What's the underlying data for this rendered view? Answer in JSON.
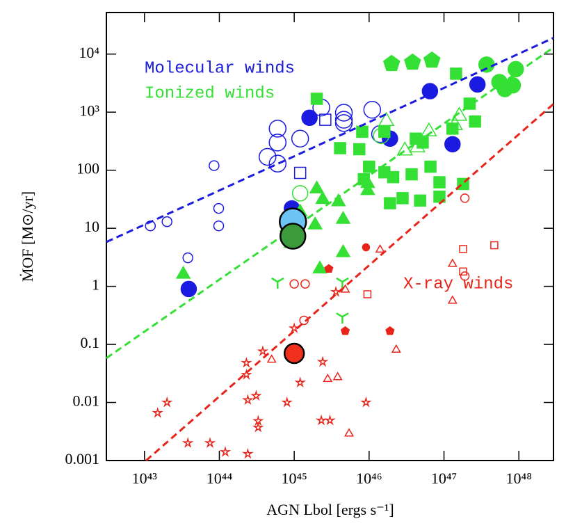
{
  "chart_data": {
    "type": "scatter",
    "xlabel": "AGN Lbol [ergs s⁻¹]",
    "ylabel": "ṀOF  [M⊙/yr]",
    "log_x": true,
    "log_y": true,
    "xlim": [
      3.1e+42,
      2.9e+48
    ],
    "ylim": [
      0.001,
      52000
    ],
    "xticks": [
      {
        "value": 1e+43,
        "label": "10⁴³"
      },
      {
        "value": 1e+44,
        "label": "10⁴⁴"
      },
      {
        "value": 1e+45,
        "label": "10⁴⁵"
      },
      {
        "value": 1e+46,
        "label": "10⁴⁶"
      },
      {
        "value": 1e+47,
        "label": "10⁴⁷"
      },
      {
        "value": 1e+48,
        "label": "10⁴⁸"
      }
    ],
    "yticks": [
      0.001,
      0.01,
      0.1,
      1,
      10,
      100,
      {
        "value": 1000,
        "label": "10³"
      },
      {
        "value": 10000,
        "label": "10⁴"
      }
    ],
    "series": [
      {
        "name": "Molecular winds",
        "color": "#1a1ae0",
        "marker": "circle",
        "filled": true,
        "size": 11,
        "x": [
          3.9e+43,
          1.6e+45,
          1.9e+46,
          6.5e+46,
          2.8e+47,
          1.3e+47,
          9.3e+44
        ],
        "values": [
          0.9,
          800,
          350,
          2300,
          3000,
          280,
          22
        ]
      },
      {
        "color": "#1a1ae0",
        "marker": "circle",
        "filled": false,
        "size": 7,
        "x": [
          1.2e+43,
          2e+43,
          8.5e+43,
          9.8e+43,
          9.8e+43,
          3.8e+43
        ],
        "values": [
          11,
          13,
          120,
          22,
          11,
          3.1
        ]
      },
      {
        "color": "#1a1ae0",
        "marker": "circle",
        "filled": false,
        "size": 12,
        "x": [
          4.4e+44,
          6e+44,
          1.2e+45,
          2.3e+45,
          4.6e+45,
          1.1e+46,
          1.4e+46,
          6e+44,
          6e+44,
          4.6e+45,
          4.6e+45
        ],
        "values": [
          170,
          300,
          350,
          1200,
          740,
          1100,
          420,
          520,
          130,
          980,
          650
        ]
      },
      {
        "color": "#1a1ae0",
        "marker": "square",
        "filled": false,
        "size": 8,
        "x": [
          2.6e+45,
          1.2e+45
        ],
        "values": [
          740,
          90
        ]
      },
      {
        "name": "Ionized winds",
        "color": "#33e033",
        "marker": "square",
        "filled": true,
        "size": 8,
        "x": [
          2e+45,
          8.1e+45,
          7.4e+45,
          1.6e+46,
          2.1e+46,
          1e+46,
          4.2e+46,
          5.2e+46,
          6.6e+46,
          8.7e+46,
          1.3e+47,
          2.6e+47,
          2.2e+47,
          1.45e+47,
          1.9e+46,
          2.8e+46,
          4.8e+46,
          8.7e+46,
          1.8e+47,
          4.1e+45,
          1.6e+46,
          8.5e+45,
          3.7e+46
        ],
        "values": [
          1700,
          460,
          230,
          460,
          76,
          115,
          350,
          300,
          115,
          62,
          520,
          690,
          1400,
          4600,
          27,
          33,
          30,
          35,
          58,
          240,
          92,
          70,
          85
        ]
      },
      {
        "color": "#33e033",
        "marker": "circle",
        "filled": true,
        "size": 11,
        "x": [
          9.1e+47,
          5.5e+47,
          6.5e+47,
          3.7e+47,
          8.3e+47
        ],
        "values": [
          5500,
          3300,
          2500,
          6600,
          2900
        ]
      },
      {
        "color": "#33e033",
        "marker": "pentagon",
        "filled": true,
        "size": 12,
        "x": [
          2e+46,
          3.8e+46,
          6.9e+46
        ],
        "values": [
          6800,
          7200,
          7800
        ]
      },
      {
        "color": "#33e033",
        "marker": "triangle",
        "filled": true,
        "size": 10,
        "x": [
          3.3e+43,
          1.2e+45,
          1.1e+45,
          1.9e+45,
          2e+45,
          2.4e+45,
          3.9e+45,
          4.5e+45,
          9.6e+45,
          9.6e+45,
          4.5e+45,
          2.2e+45,
          8e+44,
          9e+44
        ],
        "values": [
          1.7,
          20,
          9,
          12,
          50,
          33,
          30,
          15,
          62,
          47,
          4,
          2.1,
          11,
          5.8
        ]
      },
      {
        "color": "#33e033",
        "marker": "triangle",
        "filled": false,
        "size": 11,
        "x": [
          1.7e+46,
          3e+46,
          1.4e+47,
          4.4e+46,
          1.6e+47,
          6.3e+46
        ],
        "values": [
          740,
          230,
          630,
          260,
          910,
          490
        ]
      },
      {
        "color": "#33e033",
        "marker": "circle",
        "filled": false,
        "size": 11,
        "x": [
          1.45e+46,
          1.2e+45
        ],
        "values": [
          390,
          40
        ]
      },
      {
        "color": "#33e033",
        "marker": "tri",
        "filled": false,
        "size": 10,
        "x": [
          6e+44,
          4.4e+45,
          4.4e+45
        ],
        "values": [
          1.2,
          0.3,
          1.2
        ]
      },
      {
        "name": "X-ray winds",
        "color": "#e8241a",
        "marker": "star",
        "filled": false,
        "size": 6,
        "x": [
          1.5e+43,
          2e+43,
          3.8e+43,
          7.5e+43,
          1.2e+44,
          2.4e+44,
          2.3e+44,
          2.3e+44,
          2.4e+44,
          3.1e+44,
          3.3e+44,
          3.3e+44,
          3.8e+44,
          8e+44,
          1.2e+45,
          1e+45,
          2.4e+45,
          2.3e+45,
          3e+45,
          3.6e+45,
          9.1e+45
        ],
        "values": [
          0.0066,
          0.01,
          0.002,
          0.002,
          0.0014,
          0.0013,
          0.048,
          0.03,
          0.011,
          0.013,
          0.0048,
          0.0037,
          0.076,
          0.01,
          0.022,
          0.19,
          0.05,
          0.0049,
          0.0049,
          0.8,
          0.01
        ]
      },
      {
        "color": "#e8241a",
        "marker": "circle",
        "filled": false,
        "size": 6,
        "x": [
          1e+45,
          1.4e+45,
          1.35e+45,
          1.9e+47,
          1.9e+47
        ],
        "values": [
          1.1,
          1.1,
          0.26,
          33,
          1.5
        ]
      },
      {
        "color": "#e8241a",
        "marker": "triangle",
        "filled": false,
        "size": 6,
        "x": [
          1.4e+46,
          5e+44,
          2.8e+45,
          3.8e+45,
          5.4e+45,
          2.3e+46,
          1.3e+47,
          1.3e+47,
          4.8e+45
        ],
        "values": [
          4.4,
          0.056,
          0.026,
          0.028,
          0.003,
          0.083,
          2.5,
          0.58,
          0.9
        ]
      },
      {
        "color": "#e8241a",
        "marker": "square",
        "filled": false,
        "size": 5,
        "x": [
          9.5e+45,
          1.8e+47,
          1.8e+47,
          4.7e+47
        ],
        "values": [
          0.73,
          4.4,
          1.8,
          5.1
        ]
      },
      {
        "color": "#e8241a",
        "marker": "circle",
        "filled": true,
        "size": 5,
        "x": [
          9.1e+45
        ],
        "values": [
          4.7
        ]
      },
      {
        "color": "#e8241a",
        "marker": "pentagon",
        "filled": true,
        "size": 6,
        "x": [
          2.9e+45,
          4.8e+45,
          1.9e+46
        ],
        "values": [
          2,
          0.17,
          0.17
        ]
      },
      {
        "color": "#1a1ae0",
        "style": "dashed",
        "x": [
          3.1e+42,
          2.9e+48
        ],
        "values": [
          5.8,
          19000
        ]
      },
      {
        "color": "#33e033",
        "style": "dashed",
        "x": [
          3.1e+42,
          2.9e+48
        ],
        "values": [
          0.058,
          13000
        ]
      },
      {
        "color": "#e8241a",
        "style": "dashed",
        "x": [
          1.05e+43,
          2.9e+48
        ],
        "values": [
          0.001,
          1380
        ]
      },
      {
        "color": "#6ec3f5",
        "marker": "circle",
        "filled": true,
        "outline": "#000000",
        "size": 19,
        "x": [
          9.6e+44
        ],
        "values": [
          13
        ]
      },
      {
        "color": "#3c9a3c",
        "marker": "circle",
        "filled": true,
        "outline": "#000000",
        "size": 18,
        "x": [
          9.6e+44
        ],
        "values": [
          7.3
        ]
      },
      {
        "color": "#f0301c",
        "marker": "circle",
        "filled": true,
        "outline": "#000000",
        "size": 14,
        "x": [
          1e+45
        ],
        "values": [
          0.07
        ]
      }
    ]
  }
}
